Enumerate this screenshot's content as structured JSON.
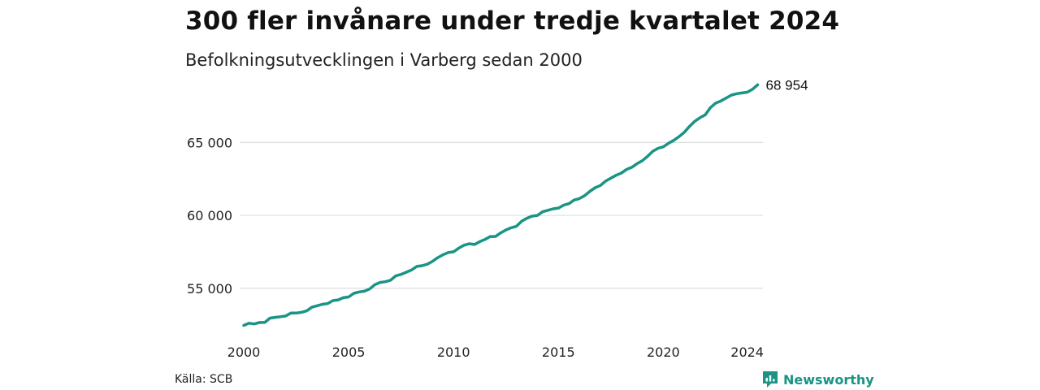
{
  "title": "300 fler invånare under tredje kvartalet 2024",
  "subtitle": "Befolkningsutvecklingen i Varberg sedan 2000",
  "source": "Källa: SCB",
  "brand": "Newsworthy",
  "colors": {
    "line": "#1a9484",
    "grid": "#dddddd",
    "brand": "#1a9484"
  },
  "chart_data": {
    "type": "line",
    "title": "300 fler invånare under tredje kvartalet 2024",
    "subtitle": "Befolkningsutvecklingen i Varberg sedan 2000",
    "xlim": [
      2000,
      2024.75
    ],
    "ylim": [
      52200,
      69200
    ],
    "xticks": [
      2000,
      2005,
      2010,
      2015,
      2020,
      2024
    ],
    "xtick_labels": [
      "2000",
      "2005",
      "2010",
      "2015",
      "2020",
      "2024"
    ],
    "yticks": [
      55000,
      60000,
      65000
    ],
    "ytick_labels": [
      "55 000",
      "60 000",
      "65 000"
    ],
    "grid": "horizontal",
    "end_label": "68 954",
    "series": [
      {
        "values": [
          [
            2000.0,
            52450
          ],
          [
            2000.25,
            52600
          ],
          [
            2000.5,
            52550
          ],
          [
            2000.75,
            52650
          ],
          [
            2001.0,
            52650
          ],
          [
            2001.25,
            52950
          ],
          [
            2001.5,
            53000
          ],
          [
            2001.75,
            53050
          ],
          [
            2002.0,
            53100
          ],
          [
            2002.25,
            53300
          ],
          [
            2002.5,
            53300
          ],
          [
            2002.75,
            53350
          ],
          [
            2003.0,
            53450
          ],
          [
            2003.25,
            53700
          ],
          [
            2003.5,
            53800
          ],
          [
            2003.75,
            53900
          ],
          [
            2004.0,
            53950
          ],
          [
            2004.25,
            54150
          ],
          [
            2004.5,
            54200
          ],
          [
            2004.75,
            54350
          ],
          [
            2005.0,
            54400
          ],
          [
            2005.25,
            54650
          ],
          [
            2005.5,
            54750
          ],
          [
            2005.75,
            54800
          ],
          [
            2006.0,
            54950
          ],
          [
            2006.25,
            55250
          ],
          [
            2006.5,
            55400
          ],
          [
            2006.75,
            55450
          ],
          [
            2007.0,
            55550
          ],
          [
            2007.25,
            55850
          ],
          [
            2007.5,
            55950
          ],
          [
            2007.75,
            56100
          ],
          [
            2008.0,
            56250
          ],
          [
            2008.25,
            56500
          ],
          [
            2008.5,
            56550
          ],
          [
            2008.75,
            56650
          ],
          [
            2009.0,
            56850
          ],
          [
            2009.25,
            57100
          ],
          [
            2009.5,
            57300
          ],
          [
            2009.75,
            57450
          ],
          [
            2010.0,
            57500
          ],
          [
            2010.25,
            57750
          ],
          [
            2010.5,
            57950
          ],
          [
            2010.75,
            58050
          ],
          [
            2011.0,
            58000
          ],
          [
            2011.25,
            58200
          ],
          [
            2011.5,
            58350
          ],
          [
            2011.75,
            58550
          ],
          [
            2012.0,
            58550
          ],
          [
            2012.25,
            58800
          ],
          [
            2012.5,
            59000
          ],
          [
            2012.75,
            59150
          ],
          [
            2013.0,
            59250
          ],
          [
            2013.25,
            59600
          ],
          [
            2013.5,
            59800
          ],
          [
            2013.75,
            59950
          ],
          [
            2014.0,
            60000
          ],
          [
            2014.25,
            60250
          ],
          [
            2014.5,
            60350
          ],
          [
            2014.75,
            60450
          ],
          [
            2015.0,
            60500
          ],
          [
            2015.25,
            60700
          ],
          [
            2015.5,
            60800
          ],
          [
            2015.75,
            61050
          ],
          [
            2016.0,
            61150
          ],
          [
            2016.25,
            61350
          ],
          [
            2016.5,
            61650
          ],
          [
            2016.75,
            61900
          ],
          [
            2017.0,
            62050
          ],
          [
            2017.25,
            62350
          ],
          [
            2017.5,
            62550
          ],
          [
            2017.75,
            62750
          ],
          [
            2018.0,
            62900
          ],
          [
            2018.25,
            63150
          ],
          [
            2018.5,
            63300
          ],
          [
            2018.75,
            63550
          ],
          [
            2019.0,
            63750
          ],
          [
            2019.25,
            64050
          ],
          [
            2019.5,
            64400
          ],
          [
            2019.75,
            64600
          ],
          [
            2020.0,
            64700
          ],
          [
            2020.25,
            64950
          ],
          [
            2020.5,
            65150
          ],
          [
            2020.75,
            65400
          ],
          [
            2021.0,
            65700
          ],
          [
            2021.25,
            66100
          ],
          [
            2021.5,
            66450
          ],
          [
            2021.75,
            66700
          ],
          [
            2022.0,
            66900
          ],
          [
            2022.25,
            67400
          ],
          [
            2022.5,
            67700
          ],
          [
            2022.75,
            67850
          ],
          [
            2023.0,
            68050
          ],
          [
            2023.25,
            68250
          ],
          [
            2023.5,
            68350
          ],
          [
            2023.75,
            68400
          ],
          [
            2024.0,
            68450
          ],
          [
            2024.25,
            68650
          ],
          [
            2024.5,
            68954
          ]
        ]
      }
    ]
  }
}
